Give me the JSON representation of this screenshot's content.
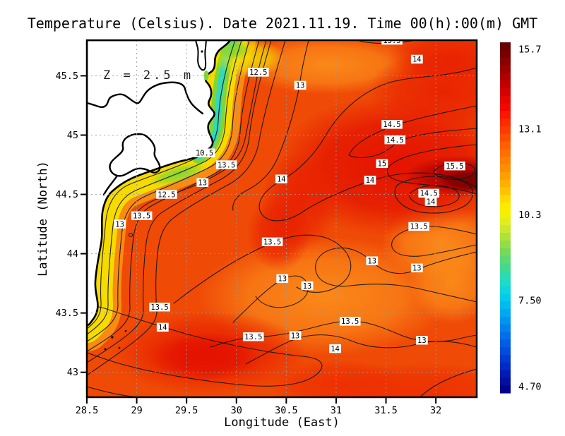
{
  "figure": {
    "background": "#ffffff"
  },
  "chart_data": {
    "type": "heatmap",
    "subtype": "filled_contour_map",
    "title": "Temperature (Celsius). Date 2021.11.19. Time 00(h):00(m) GMT",
    "annotation": "Z = 2.5 m",
    "date_shown": "2021.11.19",
    "time_shown": "00(h):00(m) GMT",
    "xlabel": "Longitude (East)",
    "ylabel": "Latitude (North)",
    "xlim": [
      28.5,
      32.41
    ],
    "ylim": [
      42.79,
      45.8
    ],
    "x_tick_labels": [
      "28.5",
      "29",
      "29.5",
      "30",
      "30.5",
      "31",
      "31.5",
      "32"
    ],
    "x_tick_values": [
      28.5,
      29,
      29.5,
      30,
      30.5,
      31,
      31.5,
      32
    ],
    "y_tick_labels": [
      "45.5",
      "45",
      "44.5",
      "44",
      "43.5",
      "43"
    ],
    "y_tick_values": [
      45.5,
      45,
      44.5,
      44,
      43.5,
      43
    ],
    "grid": "dotted",
    "land_color": "#ffffff",
    "coastline_color": "#000000",
    "contour_interval": 0.5,
    "contour_levels": [
      10.5,
      11,
      11.5,
      12,
      12.5,
      13,
      13.5,
      14,
      14.5,
      15,
      15.5
    ],
    "contour_labels": [
      {
        "text": "13.5",
        "lon": 31.56,
        "lat": 45.8
      },
      {
        "text": "14",
        "lon": 31.81,
        "lat": 45.64
      },
      {
        "text": "12.5",
        "lon": 30.22,
        "lat": 45.53
      },
      {
        "text": "13",
        "lon": 30.64,
        "lat": 45.42
      },
      {
        "text": "14.5",
        "lon": 31.56,
        "lat": 45.09
      },
      {
        "text": "14.5",
        "lon": 31.59,
        "lat": 44.96
      },
      {
        "text": "10.5",
        "lon": 29.68,
        "lat": 44.85
      },
      {
        "text": "13.5",
        "lon": 29.9,
        "lat": 44.75
      },
      {
        "text": "15",
        "lon": 31.46,
        "lat": 44.76
      },
      {
        "text": "15.5",
        "lon": 32.19,
        "lat": 44.74
      },
      {
        "text": "13",
        "lon": 29.66,
        "lat": 44.6
      },
      {
        "text": "14",
        "lon": 30.45,
        "lat": 44.63
      },
      {
        "text": "14",
        "lon": 31.34,
        "lat": 44.62
      },
      {
        "text": "12.5",
        "lon": 29.3,
        "lat": 44.5
      },
      {
        "text": "14.5",
        "lon": 31.93,
        "lat": 44.51
      },
      {
        "text": "14",
        "lon": 31.95,
        "lat": 44.44
      },
      {
        "text": "13.5",
        "lon": 29.05,
        "lat": 44.32
      },
      {
        "text": "13",
        "lon": 28.83,
        "lat": 44.25
      },
      {
        "text": "13.5",
        "lon": 31.83,
        "lat": 44.23
      },
      {
        "text": "13.5",
        "lon": 30.36,
        "lat": 44.1
      },
      {
        "text": "13",
        "lon": 31.36,
        "lat": 43.94
      },
      {
        "text": "13",
        "lon": 31.81,
        "lat": 43.88
      },
      {
        "text": "13",
        "lon": 30.46,
        "lat": 43.79
      },
      {
        "text": "13",
        "lon": 30.71,
        "lat": 43.73
      },
      {
        "text": "13.5",
        "lon": 29.23,
        "lat": 43.55
      },
      {
        "text": "13.5",
        "lon": 31.14,
        "lat": 43.43
      },
      {
        "text": "14",
        "lon": 29.26,
        "lat": 43.38
      },
      {
        "text": "13.5",
        "lon": 30.17,
        "lat": 43.3
      },
      {
        "text": "13",
        "lon": 30.59,
        "lat": 43.31
      },
      {
        "text": "13",
        "lon": 31.86,
        "lat": 43.27
      },
      {
        "text": "14",
        "lon": 30.99,
        "lat": 43.2
      }
    ],
    "colorbar": {
      "orientation": "vertical",
      "side": "right",
      "tick_labels": [
        "15.7",
        "13.1",
        "10.3",
        "7.50",
        "4.70"
      ],
      "tick_values": [
        15.7,
        13.1,
        10.3,
        7.5,
        4.7
      ],
      "vmax": 15.93,
      "vmin": 4.49,
      "colormap": "jet-like",
      "stops": [
        [
          0.0,
          "#5e0000"
        ],
        [
          0.04,
          "#7f0000"
        ],
        [
          0.09,
          "#a80000"
        ],
        [
          0.14,
          "#d40000"
        ],
        [
          0.19,
          "#f70800"
        ],
        [
          0.24,
          "#ff3300"
        ],
        [
          0.29,
          "#ff5c00"
        ],
        [
          0.34,
          "#ff8200"
        ],
        [
          0.39,
          "#ffa600"
        ],
        [
          0.43,
          "#ffc800"
        ],
        [
          0.46,
          "#ffe800"
        ],
        [
          0.49,
          "#f4f000"
        ],
        [
          0.52,
          "#d8ec2a"
        ],
        [
          0.56,
          "#a8e03c"
        ],
        [
          0.6,
          "#74d95c"
        ],
        [
          0.64,
          "#44d98e"
        ],
        [
          0.68,
          "#20dcc4"
        ],
        [
          0.72,
          "#04d2e8"
        ],
        [
          0.76,
          "#00b2f2"
        ],
        [
          0.81,
          "#0086ee"
        ],
        [
          0.86,
          "#005ce4"
        ],
        [
          0.91,
          "#0034d0"
        ],
        [
          0.96,
          "#0014a8"
        ],
        [
          1.0,
          "#000080"
        ]
      ]
    }
  }
}
